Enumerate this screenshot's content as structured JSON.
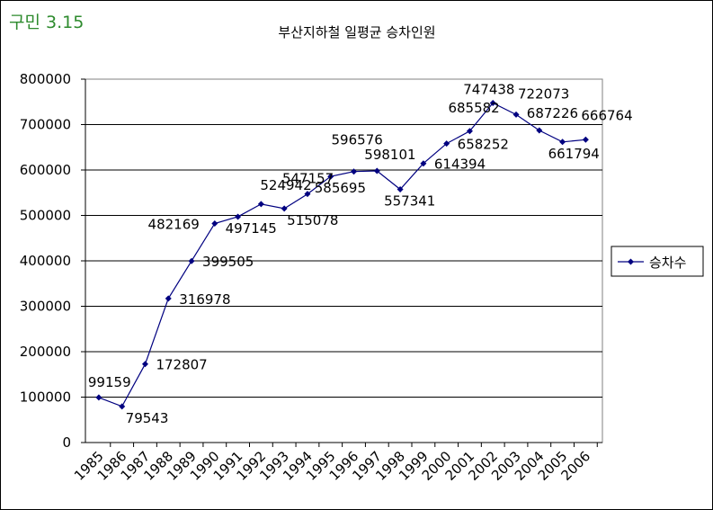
{
  "figure_label": "구민 3.15",
  "chart_data": {
    "type": "line",
    "title": "부산지하철 일평균 승차인원",
    "xlabel": "",
    "ylabel": "",
    "categories": [
      "1985",
      "1986",
      "1987",
      "1988",
      "1989",
      "1990",
      "1991",
      "1992",
      "1993",
      "1994",
      "1995",
      "1996",
      "1997",
      "1998",
      "1999",
      "2000",
      "2001",
      "2002",
      "2003",
      "2004",
      "2005",
      "2006"
    ],
    "series": [
      {
        "name": "승차수",
        "values": [
          99159,
          79543,
          172807,
          316978,
          399505,
          482169,
          497145,
          524942,
          515078,
          547157,
          585695,
          596576,
          598101,
          557341,
          614394,
          658252,
          685582,
          747438,
          722073,
          687226,
          661794,
          666764
        ]
      }
    ],
    "data_labels": [
      "99159",
      "79543",
      "172807",
      "316978",
      "399505",
      "482169",
      "497145",
      "524942",
      "515078",
      "547157",
      "585695",
      "596576",
      "598101",
      "557341",
      "614394",
      "658252",
      "685582",
      "747438",
      "722073",
      "687226",
      "661794",
      "666764"
    ],
    "ylim": [
      0,
      800000
    ],
    "yticks": [
      0,
      100000,
      200000,
      300000,
      400000,
      500000,
      600000,
      700000,
      800000
    ],
    "ytick_labels": [
      "0",
      "100000",
      "200000",
      "300000",
      "400000",
      "500000",
      "600000",
      "700000",
      "800000"
    ],
    "grid": "horizontal",
    "legend_position": "right",
    "line_color": "#000080"
  }
}
